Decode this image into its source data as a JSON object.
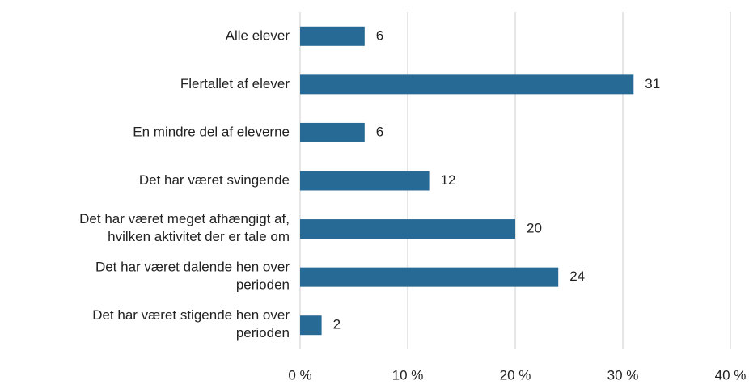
{
  "chart_data": {
    "type": "bar",
    "orientation": "horizontal",
    "categories": [
      "Alle elever",
      "Flertallet af elever",
      "En mindre del af eleverne",
      "Det har været svingende",
      "Det har været meget afhængigt af,\nhvilken aktivitet der er tale om",
      "Det har været dalende hen over\nperioden",
      "Det har været stigende hen over\nperioden"
    ],
    "values": [
      6,
      31,
      6,
      12,
      20,
      24,
      2
    ],
    "color": "#276a95",
    "xlim": [
      0,
      40
    ],
    "xticks": [
      {
        "value": 0,
        "label": "0 %"
      },
      {
        "value": 10,
        "label": "10 %"
      },
      {
        "value": 20,
        "label": "20 %"
      },
      {
        "value": 30,
        "label": "30 %"
      },
      {
        "value": 40,
        "label": "40 %"
      }
    ],
    "grid": true
  }
}
